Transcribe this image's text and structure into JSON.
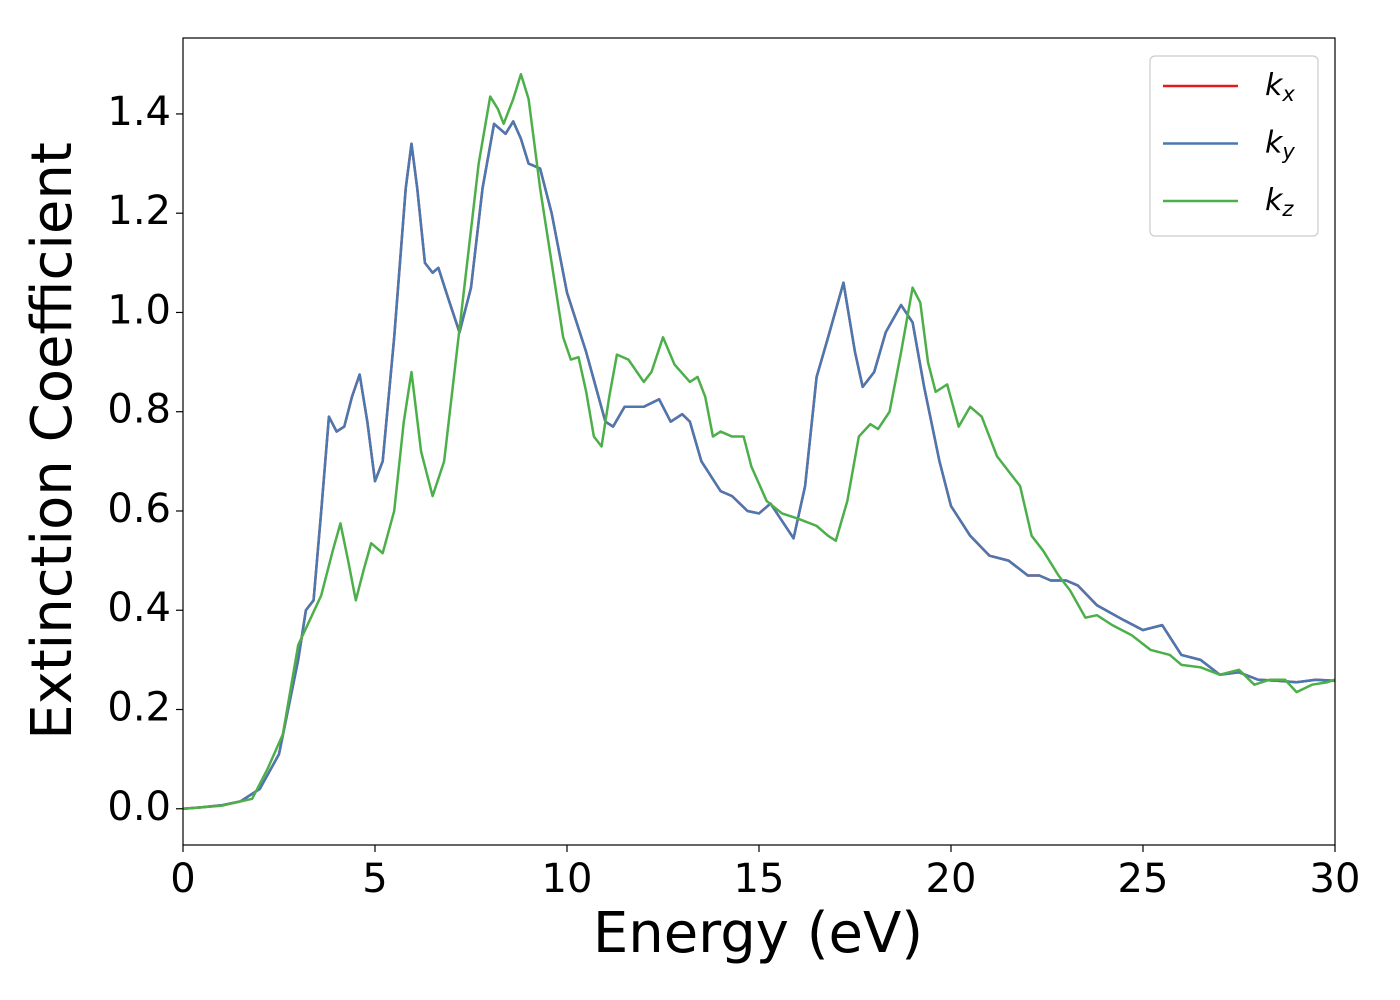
{
  "chart_data": {
    "type": "line",
    "x_label": "Energy (eV)",
    "y_label": "Extinction Coefficient",
    "xlim": [
      0,
      30
    ],
    "xticks": [
      0,
      5,
      10,
      15,
      20,
      25,
      30
    ],
    "ylim": [
      -0.073,
      1.553
    ],
    "yticks": [
      {
        "value": 0,
        "label": "0.0"
      },
      0.2,
      0.4,
      0.6,
      0.8,
      {
        "value": 1,
        "label": "1.0"
      },
      1.2,
      1.4
    ],
    "legend": "upper right",
    "grid": false,
    "series": [
      {
        "name": "kx",
        "color": "#e41a1c",
        "x": [
          0,
          0.5,
          1,
          1.5,
          2,
          2.5,
          3,
          3.2,
          3.4,
          3.6,
          3.8,
          4.0,
          4.2,
          4.4,
          4.6,
          4.8,
          5.0,
          5.2,
          5.5,
          5.8,
          5.95,
          6.1,
          6.3,
          6.5,
          6.65,
          6.9,
          7.2,
          7.5,
          7.8,
          8.1,
          8.4,
          8.6,
          8.8,
          9.0,
          9.3,
          9.6,
          10,
          10.5,
          11,
          11.2,
          11.5,
          12,
          12.4,
          12.7,
          13,
          13.2,
          13.5,
          14,
          14.3,
          14.7,
          15,
          15.3,
          15.6,
          15.9,
          16.2,
          16.5,
          16.8,
          17.2,
          17.5,
          17.7,
          18.0,
          18.3,
          18.7,
          19.0,
          19.3,
          19.7,
          20.0,
          20.5,
          21,
          21.5,
          22,
          22.3,
          22.6,
          23,
          23.3,
          23.8,
          24.5,
          25,
          25.5,
          26,
          26.5,
          27,
          27.5,
          28,
          28.5,
          29,
          29.5,
          30
        ],
        "values": [
          0,
          0.003,
          0.007,
          0.015,
          0.04,
          0.11,
          0.3,
          0.4,
          0.42,
          0.6,
          0.79,
          0.76,
          0.77,
          0.83,
          0.875,
          0.78,
          0.66,
          0.7,
          0.95,
          1.25,
          1.34,
          1.25,
          1.1,
          1.08,
          1.09,
          1.03,
          0.96,
          1.05,
          1.25,
          1.38,
          1.36,
          1.385,
          1.35,
          1.3,
          1.29,
          1.2,
          1.04,
          0.92,
          0.78,
          0.77,
          0.81,
          0.81,
          0.825,
          0.78,
          0.795,
          0.78,
          0.7,
          0.64,
          0.63,
          0.6,
          0.595,
          0.615,
          0.58,
          0.545,
          0.65,
          0.87,
          0.95,
          1.06,
          0.92,
          0.85,
          0.88,
          0.96,
          1.015,
          0.98,
          0.85,
          0.7,
          0.61,
          0.55,
          0.51,
          0.5,
          0.47,
          0.47,
          0.46,
          0.46,
          0.45,
          0.41,
          0.38,
          0.36,
          0.37,
          0.31,
          0.3,
          0.27,
          0.275,
          0.26,
          0.258,
          0.255,
          0.26,
          0.258
        ]
      },
      {
        "name": "ky",
        "color": "#4a78b0",
        "x": [
          0,
          0.5,
          1,
          1.5,
          2,
          2.5,
          3,
          3.2,
          3.4,
          3.6,
          3.8,
          4.0,
          4.2,
          4.4,
          4.6,
          4.8,
          5.0,
          5.2,
          5.5,
          5.8,
          5.95,
          6.1,
          6.3,
          6.5,
          6.65,
          6.9,
          7.2,
          7.5,
          7.8,
          8.1,
          8.4,
          8.6,
          8.8,
          9.0,
          9.3,
          9.6,
          10,
          10.5,
          11,
          11.2,
          11.5,
          12,
          12.4,
          12.7,
          13,
          13.2,
          13.5,
          14,
          14.3,
          14.7,
          15,
          15.3,
          15.6,
          15.9,
          16.2,
          16.5,
          16.8,
          17.2,
          17.5,
          17.7,
          18.0,
          18.3,
          18.7,
          19.0,
          19.3,
          19.7,
          20.0,
          20.5,
          21,
          21.5,
          22,
          22.3,
          22.6,
          23,
          23.3,
          23.8,
          24.5,
          25,
          25.5,
          26,
          26.5,
          27,
          27.5,
          28,
          28.5,
          29,
          29.5,
          30
        ],
        "values": [
          0,
          0.003,
          0.007,
          0.015,
          0.04,
          0.11,
          0.3,
          0.4,
          0.42,
          0.6,
          0.79,
          0.76,
          0.77,
          0.83,
          0.875,
          0.78,
          0.66,
          0.7,
          0.95,
          1.25,
          1.34,
          1.25,
          1.1,
          1.08,
          1.09,
          1.03,
          0.96,
          1.05,
          1.25,
          1.38,
          1.36,
          1.385,
          1.35,
          1.3,
          1.29,
          1.2,
          1.04,
          0.92,
          0.78,
          0.77,
          0.81,
          0.81,
          0.825,
          0.78,
          0.795,
          0.78,
          0.7,
          0.64,
          0.63,
          0.6,
          0.595,
          0.615,
          0.58,
          0.545,
          0.65,
          0.87,
          0.95,
          1.06,
          0.92,
          0.85,
          0.88,
          0.96,
          1.015,
          0.98,
          0.85,
          0.7,
          0.61,
          0.55,
          0.51,
          0.5,
          0.47,
          0.47,
          0.46,
          0.46,
          0.45,
          0.41,
          0.38,
          0.36,
          0.37,
          0.31,
          0.3,
          0.27,
          0.275,
          0.26,
          0.258,
          0.255,
          0.26,
          0.258
        ]
      },
      {
        "name": "kz",
        "color": "#4daf4a",
        "x": [
          0,
          1,
          1.8,
          2.2,
          2.6,
          3.0,
          3.3,
          3.6,
          3.9,
          4.1,
          4.3,
          4.5,
          4.7,
          4.9,
          5.2,
          5.5,
          5.75,
          5.95,
          6.2,
          6.5,
          6.8,
          7.1,
          7.4,
          7.7,
          8.0,
          8.2,
          8.35,
          8.6,
          8.8,
          9.0,
          9.3,
          9.6,
          9.9,
          10.1,
          10.3,
          10.5,
          10.7,
          10.9,
          11.1,
          11.3,
          11.6,
          12.0,
          12.2,
          12.5,
          12.8,
          13.2,
          13.4,
          13.6,
          13.8,
          14.0,
          14.3,
          14.6,
          14.8,
          15.2,
          15.6,
          16,
          16.5,
          16.8,
          17.0,
          17.3,
          17.6,
          17.9,
          18.1,
          18.4,
          18.7,
          19.0,
          19.2,
          19.4,
          19.6,
          19.9,
          20.2,
          20.5,
          20.8,
          21.2,
          21.5,
          21.8,
          22.1,
          22.4,
          22.8,
          23.1,
          23.5,
          23.8,
          24.2,
          24.7,
          25.2,
          25.7,
          26,
          26.5,
          27,
          27.5,
          27.9,
          28.3,
          28.7,
          29,
          29.4,
          29.8,
          30
        ],
        "values": [
          0,
          0.006,
          0.02,
          0.08,
          0.15,
          0.33,
          0.38,
          0.43,
          0.52,
          0.575,
          0.5,
          0.42,
          0.48,
          0.535,
          0.515,
          0.6,
          0.78,
          0.88,
          0.72,
          0.63,
          0.7,
          0.9,
          1.1,
          1.3,
          1.435,
          1.41,
          1.38,
          1.43,
          1.48,
          1.43,
          1.25,
          1.1,
          0.95,
          0.905,
          0.91,
          0.84,
          0.75,
          0.73,
          0.83,
          0.915,
          0.905,
          0.86,
          0.88,
          0.95,
          0.895,
          0.86,
          0.87,
          0.83,
          0.75,
          0.76,
          0.75,
          0.75,
          0.69,
          0.62,
          0.595,
          0.585,
          0.57,
          0.55,
          0.54,
          0.62,
          0.75,
          0.775,
          0.765,
          0.8,
          0.92,
          1.05,
          1.02,
          0.9,
          0.84,
          0.855,
          0.77,
          0.81,
          0.79,
          0.71,
          0.68,
          0.65,
          0.55,
          0.52,
          0.47,
          0.44,
          0.385,
          0.39,
          0.37,
          0.35,
          0.32,
          0.31,
          0.29,
          0.285,
          0.27,
          0.28,
          0.25,
          0.26,
          0.26,
          0.235,
          0.25,
          0.255,
          0.26
        ]
      }
    ]
  }
}
